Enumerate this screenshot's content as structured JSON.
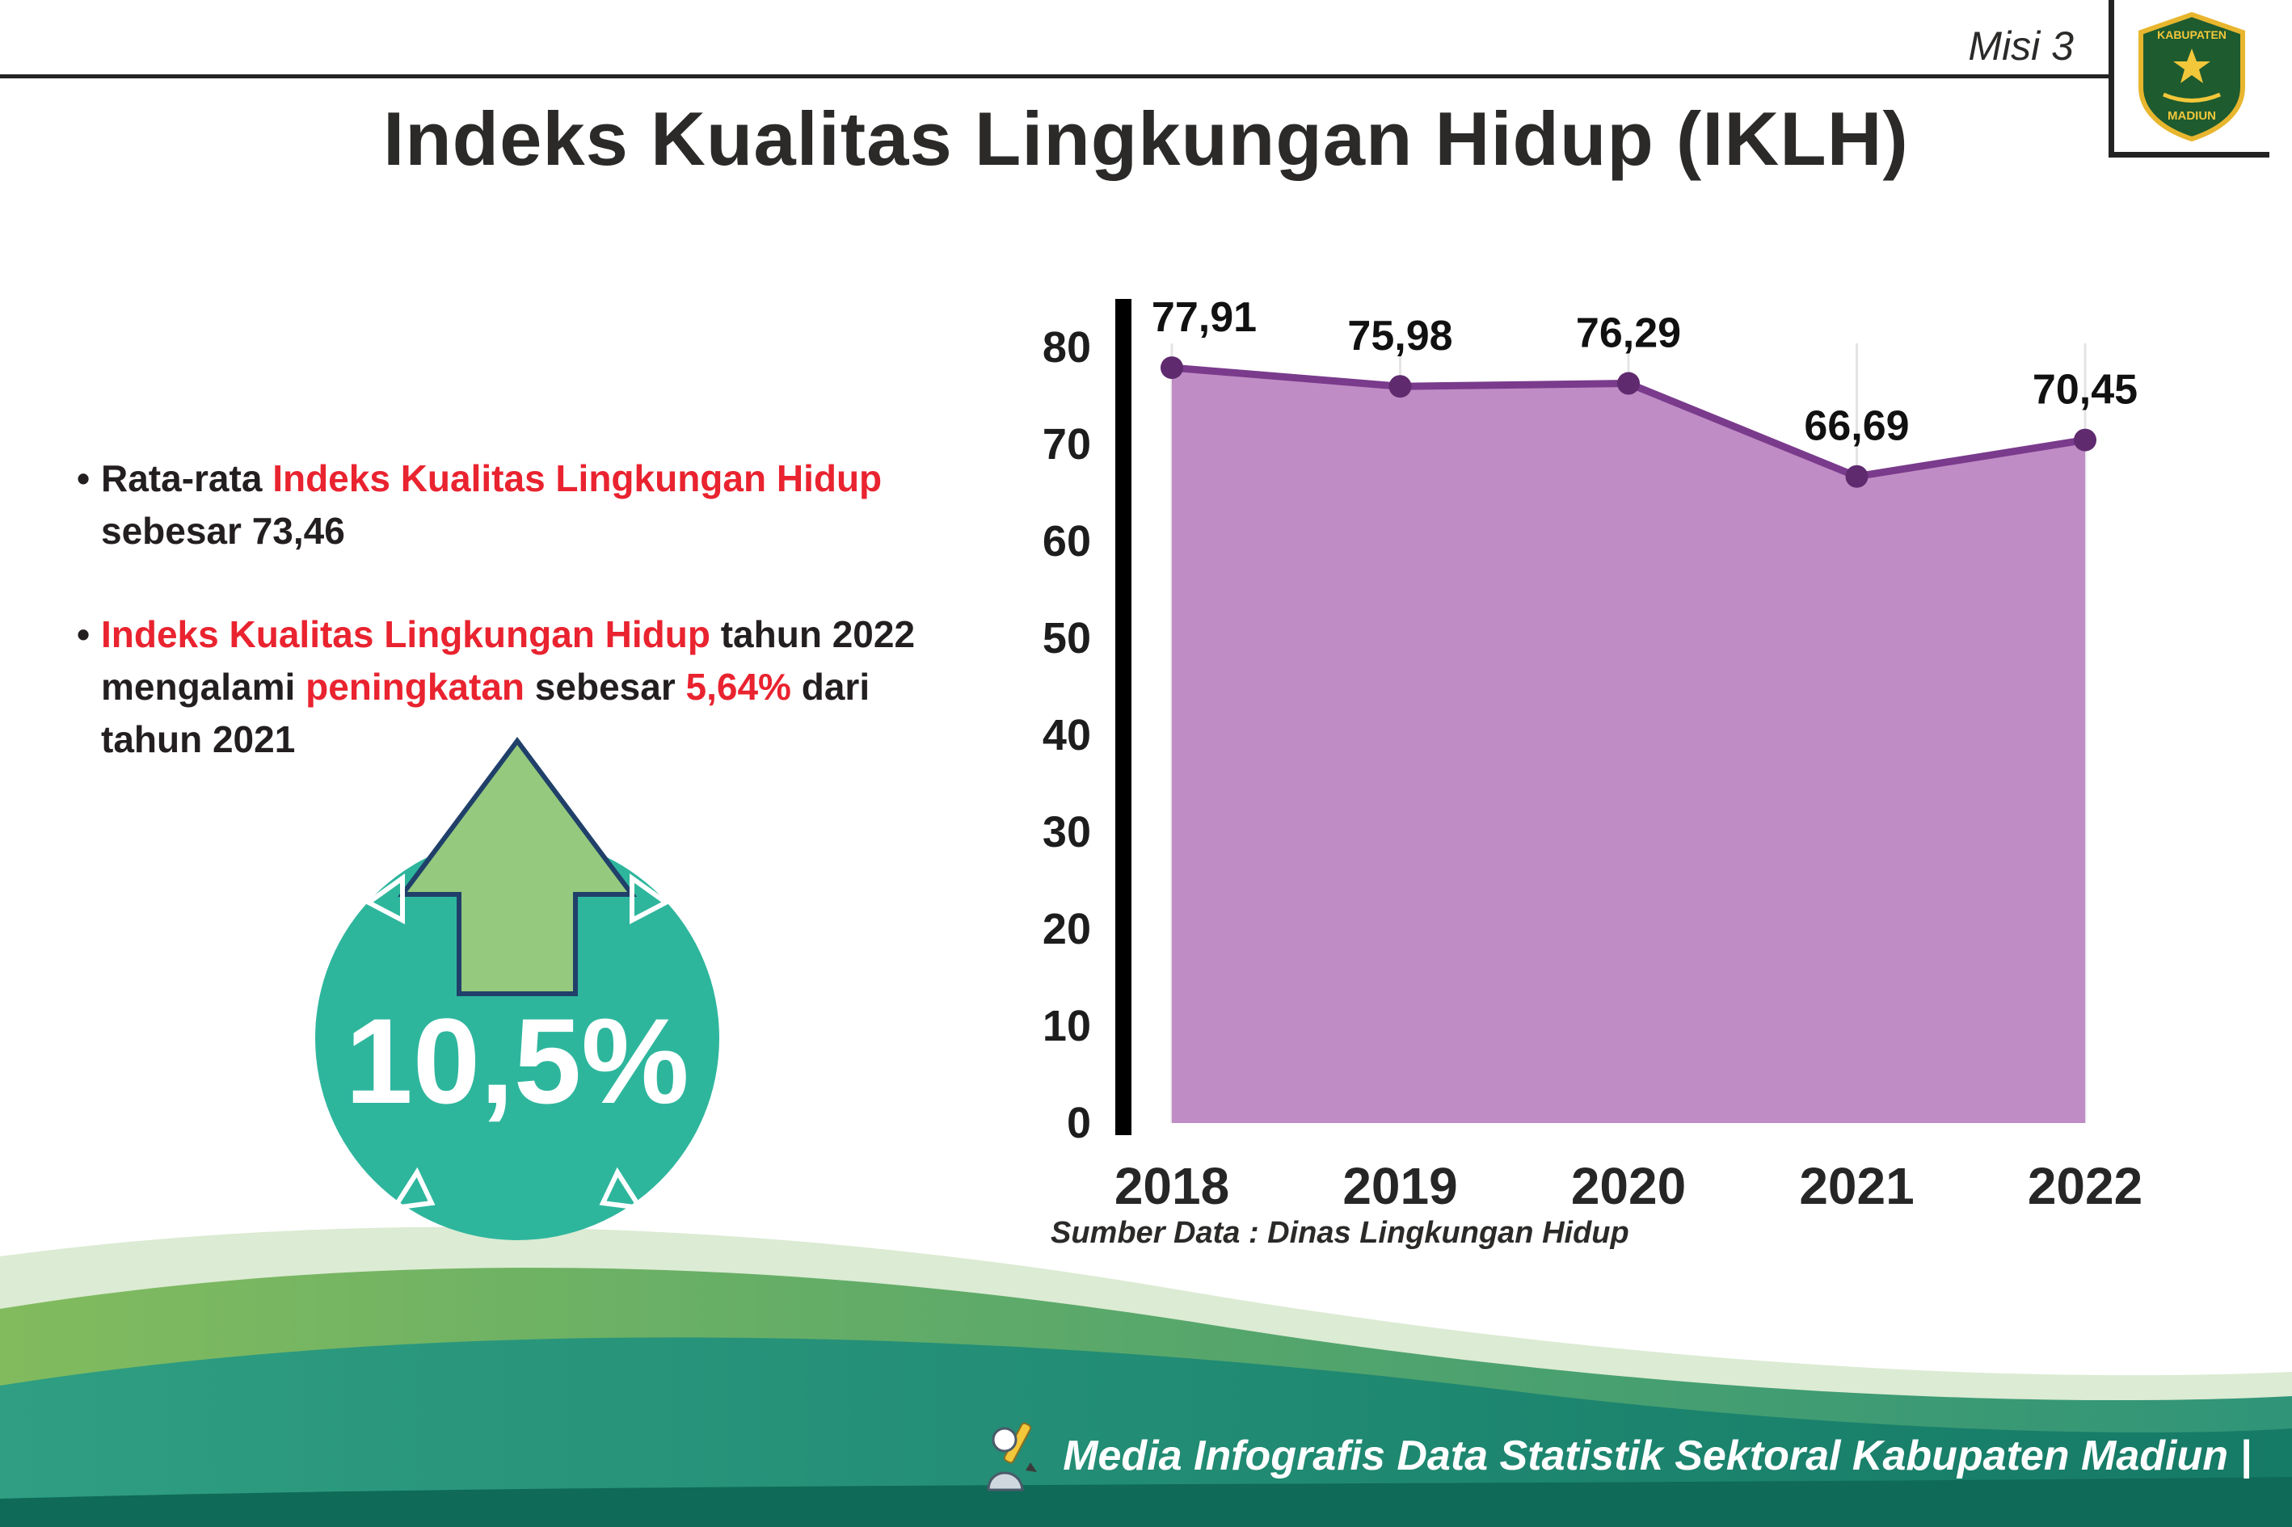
{
  "header": {
    "mission_label": "Misi 3",
    "logo": {
      "top_text": "KABUPATEN",
      "bottom_text": "MADIUN"
    }
  },
  "title": "Indeks Kualitas Lingkungan Hidup (IKLH)",
  "bullets": {
    "b1": {
      "prefix": "Rata-rata ",
      "highlight": "Indeks Kualitas Lingkungan Hidup",
      "suffix": " sebesar 73,46"
    },
    "b2": {
      "highlight1": "Indeks Kualitas Lingkungan Hidup",
      "mid1": " tahun 2022 mengalami ",
      "highlight2": "peningkatan",
      "mid2": " sebesar ",
      "highlight3": "5,64%",
      "suffix": " dari tahun 2021"
    }
  },
  "badge": {
    "value": "10,5%"
  },
  "chart_data": {
    "type": "area",
    "categories": [
      "2018",
      "2019",
      "2020",
      "2021",
      "2022"
    ],
    "values": [
      77.91,
      75.98,
      76.29,
      66.69,
      70.45
    ],
    "value_labels": [
      "77,91",
      "75,98",
      "76,29",
      "66,69",
      "70,45"
    ],
    "title": "",
    "xlabel": "",
    "ylabel": "",
    "ylim": [
      0,
      80
    ],
    "yticks": [
      0,
      10,
      20,
      30,
      40,
      50,
      60,
      70,
      80
    ],
    "grid": "faint-vertical",
    "legend_position": "none",
    "line_color": "#7a3b8c",
    "fill_color": "#c08cc5",
    "dot_color": "#5f2a6e",
    "source": "Sumber Data : Dinas Lingkungan Hidup"
  },
  "footer": {
    "credit": "Media Infografis Data Statistik Sektoral Kabupaten Madiun |"
  },
  "colors": {
    "accent_red": "#e9232f",
    "badge_teal": "#2eb69d",
    "arrow_green": "#95c97e",
    "footer_teal": "#157a66"
  }
}
